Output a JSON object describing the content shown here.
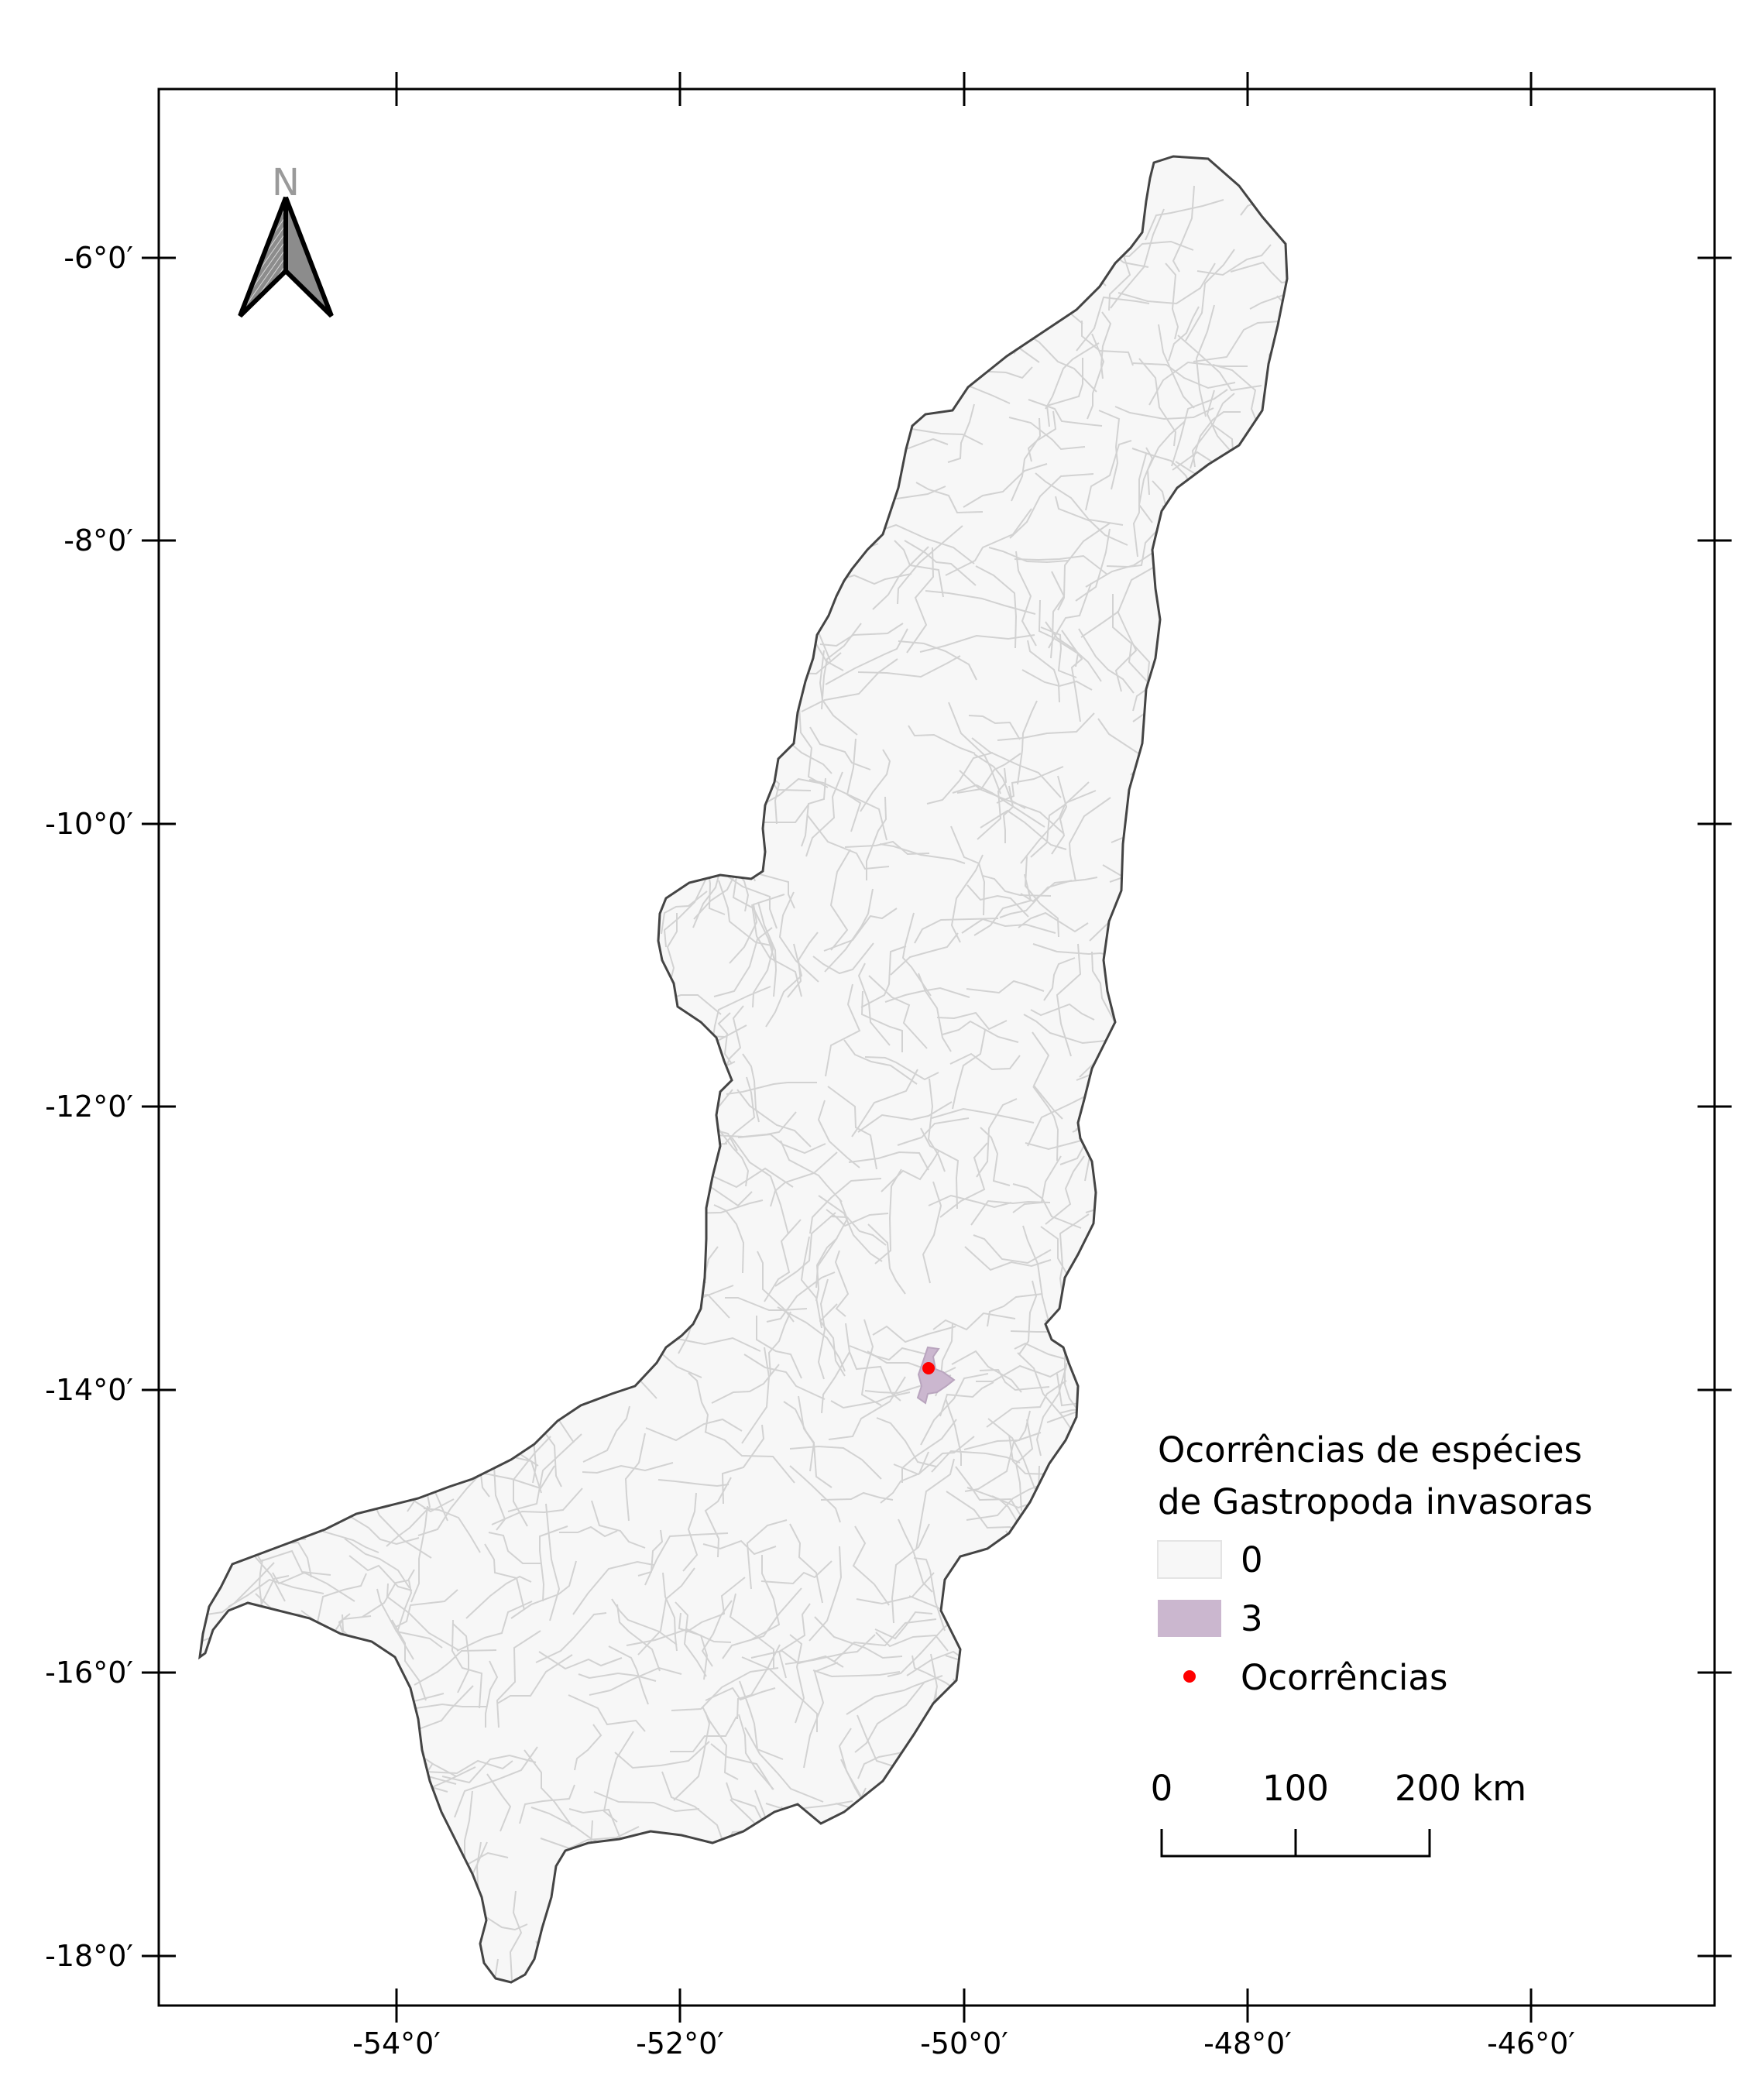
{
  "axes": {
    "lon_ticks": [
      "-54°0′",
      "-52°0′",
      "-50°0′",
      "-48°0′",
      "-46°0′"
    ],
    "lat_ticks": [
      "-6°0′",
      "-8°0′",
      "-10°0′",
      "-12°0′",
      "-14°0′",
      "-16°0′",
      "-18°0′"
    ]
  },
  "north_arrow": {
    "label": "N",
    "icon": "north-arrow-icon"
  },
  "legend": {
    "title_line1": "Ocorrências de espécies",
    "title_line2": "de Gastropoda invasoras",
    "classes": [
      {
        "label": "0",
        "color": "#f7f7f7"
      },
      {
        "label": "3",
        "color": "#cbb7cf"
      }
    ],
    "point": {
      "label": "Ocorrências",
      "color": "#ff0000"
    }
  },
  "scale_bar": {
    "labels": [
      "0",
      "100",
      "200 km"
    ]
  },
  "colors": {
    "basin_fill": "#f7f7f7",
    "basin_outline": "#444444",
    "subbasin_lines": "#d2d2d2",
    "highlight": "#cbb7cf",
    "occurrence": "#ff0000"
  }
}
